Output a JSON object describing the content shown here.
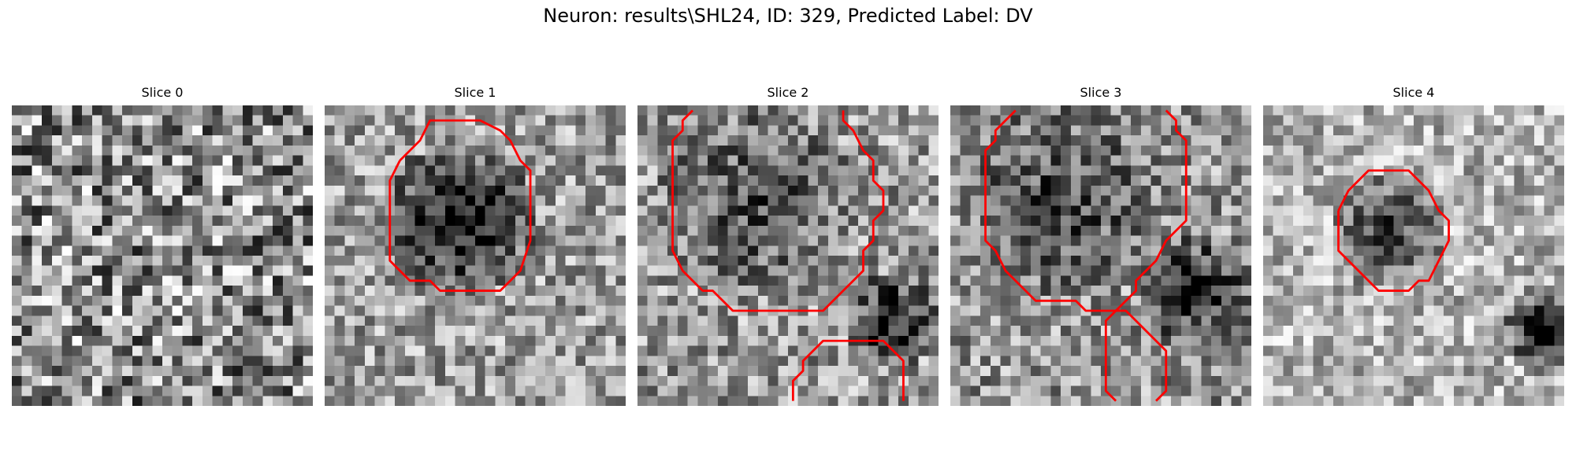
{
  "figure": {
    "title": "Neuron: results\\SHL24, ID: 329, Predicted Label: DV",
    "grid_size": 30,
    "contour_color": "#ff0000",
    "cmap": "gray"
  },
  "panels": [
    {
      "title": "Slice 0",
      "texture": {
        "seed": 11,
        "base": 0.55,
        "contrast": 0.45,
        "blobs": []
      },
      "contours": []
    },
    {
      "title": "Slice 1",
      "texture": {
        "seed": 23,
        "base": 0.62,
        "contrast": 0.3,
        "blobs": [
          {
            "cx": 13,
            "cy": 11,
            "r": 8,
            "depth": 0.55
          }
        ]
      },
      "contours": [
        [
          [
            7,
            5
          ],
          [
            9,
            3
          ],
          [
            10,
            1
          ],
          [
            13,
            1
          ],
          [
            15,
            1
          ],
          [
            17,
            2
          ],
          [
            18,
            3
          ],
          [
            19,
            5
          ],
          [
            20,
            6
          ],
          [
            20,
            9
          ],
          [
            20,
            13
          ],
          [
            19,
            16
          ],
          [
            18,
            17
          ],
          [
            17,
            18
          ],
          [
            16,
            18
          ],
          [
            15,
            18
          ],
          [
            13,
            18
          ],
          [
            11,
            18
          ],
          [
            10,
            17
          ],
          [
            8,
            17
          ],
          [
            7,
            16
          ],
          [
            6,
            15
          ],
          [
            6,
            11
          ],
          [
            6,
            7
          ],
          [
            7,
            5
          ]
        ]
      ]
    },
    {
      "title": "Slice 2",
      "texture": {
        "seed": 37,
        "base": 0.6,
        "contrast": 0.32,
        "blobs": [
          {
            "cx": 11,
            "cy": 9,
            "r": 10,
            "depth": 0.3
          },
          {
            "cx": 25,
            "cy": 21,
            "r": 5,
            "depth": 0.5
          }
        ]
      },
      "contours": [
        [
          [
            5,
            0
          ],
          [
            4,
            1
          ],
          [
            4,
            2
          ],
          [
            3,
            3
          ],
          [
            3,
            4
          ],
          [
            3,
            7
          ],
          [
            3,
            11
          ],
          [
            3,
            14
          ],
          [
            4,
            16
          ],
          [
            5,
            17
          ],
          [
            6,
            18
          ],
          [
            7,
            18
          ],
          [
            8,
            19
          ],
          [
            9,
            20
          ],
          [
            11,
            20
          ],
          [
            14,
            20
          ],
          [
            17,
            20
          ],
          [
            18,
            20
          ],
          [
            19,
            19
          ],
          [
            20,
            18
          ],
          [
            21,
            17
          ],
          [
            22,
            16
          ],
          [
            22,
            15
          ],
          [
            22,
            14
          ],
          [
            23,
            13
          ],
          [
            23,
            11
          ],
          [
            24,
            10
          ],
          [
            24,
            8
          ],
          [
            23,
            7
          ],
          [
            23,
            5
          ],
          [
            22,
            4
          ],
          [
            21,
            2
          ],
          [
            20,
            1
          ],
          [
            20,
            0
          ]
        ],
        [
          [
            15,
            29
          ],
          [
            15,
            27
          ],
          [
            16,
            26
          ],
          [
            16,
            25
          ],
          [
            17,
            24
          ],
          [
            18,
            23
          ],
          [
            21,
            23
          ],
          [
            24,
            23
          ],
          [
            25,
            24
          ],
          [
            26,
            25
          ],
          [
            26,
            27
          ],
          [
            26,
            29
          ]
        ]
      ]
    },
    {
      "title": "Slice 3",
      "texture": {
        "seed": 53,
        "base": 0.58,
        "contrast": 0.32,
        "blobs": [
          {
            "cx": 11,
            "cy": 9,
            "r": 10,
            "depth": 0.3
          },
          {
            "cx": 24,
            "cy": 18,
            "r": 6,
            "depth": 0.45
          }
        ]
      },
      "contours": [
        [
          [
            6,
            0
          ],
          [
            5,
            1
          ],
          [
            4,
            2
          ],
          [
            4,
            3
          ],
          [
            3,
            4
          ],
          [
            3,
            6
          ],
          [
            3,
            10
          ],
          [
            3,
            13
          ],
          [
            4,
            14
          ],
          [
            5,
            16
          ],
          [
            6,
            17
          ],
          [
            7,
            18
          ],
          [
            8,
            19
          ],
          [
            10,
            19
          ],
          [
            12,
            19
          ],
          [
            13,
            20
          ],
          [
            14,
            20
          ],
          [
            15,
            20
          ],
          [
            16,
            20
          ],
          [
            17,
            20
          ],
          [
            18,
            21
          ],
          [
            19,
            22
          ],
          [
            20,
            23
          ],
          [
            21,
            24
          ],
          [
            21,
            26
          ],
          [
            21,
            28
          ],
          [
            20,
            29
          ]
        ],
        [
          [
            21,
            0
          ],
          [
            22,
            1
          ],
          [
            22,
            2
          ],
          [
            23,
            3
          ],
          [
            23,
            5
          ],
          [
            23,
            8
          ],
          [
            23,
            11
          ],
          [
            22,
            12
          ],
          [
            21,
            13
          ],
          [
            20,
            15
          ],
          [
            19,
            16
          ],
          [
            18,
            17
          ],
          [
            18,
            18
          ],
          [
            17,
            19
          ],
          [
            16,
            20
          ],
          [
            15,
            21
          ],
          [
            15,
            23
          ],
          [
            15,
            26
          ],
          [
            15,
            28
          ],
          [
            16,
            29
          ]
        ]
      ]
    },
    {
      "title": "Slice 4",
      "texture": {
        "seed": 71,
        "base": 0.7,
        "contrast": 0.28,
        "blobs": [
          {
            "cx": 12,
            "cy": 12,
            "r": 6,
            "depth": 0.45
          },
          {
            "cx": 28,
            "cy": 22,
            "r": 5,
            "depth": 0.6
          }
        ]
      },
      "contours": [
        [
          [
            7,
            10
          ],
          [
            8,
            8
          ],
          [
            9,
            7
          ],
          [
            10,
            6
          ],
          [
            12,
            6
          ],
          [
            14,
            6
          ],
          [
            15,
            7
          ],
          [
            16,
            8
          ],
          [
            17,
            10
          ],
          [
            18,
            11
          ],
          [
            18,
            13
          ],
          [
            17,
            15
          ],
          [
            16,
            17
          ],
          [
            15,
            17
          ],
          [
            14,
            18
          ],
          [
            13,
            18
          ],
          [
            12,
            18
          ],
          [
            11,
            18
          ],
          [
            10,
            17
          ],
          [
            9,
            16
          ],
          [
            8,
            15
          ],
          [
            7,
            14
          ],
          [
            7,
            12
          ],
          [
            7,
            10
          ]
        ]
      ]
    }
  ]
}
